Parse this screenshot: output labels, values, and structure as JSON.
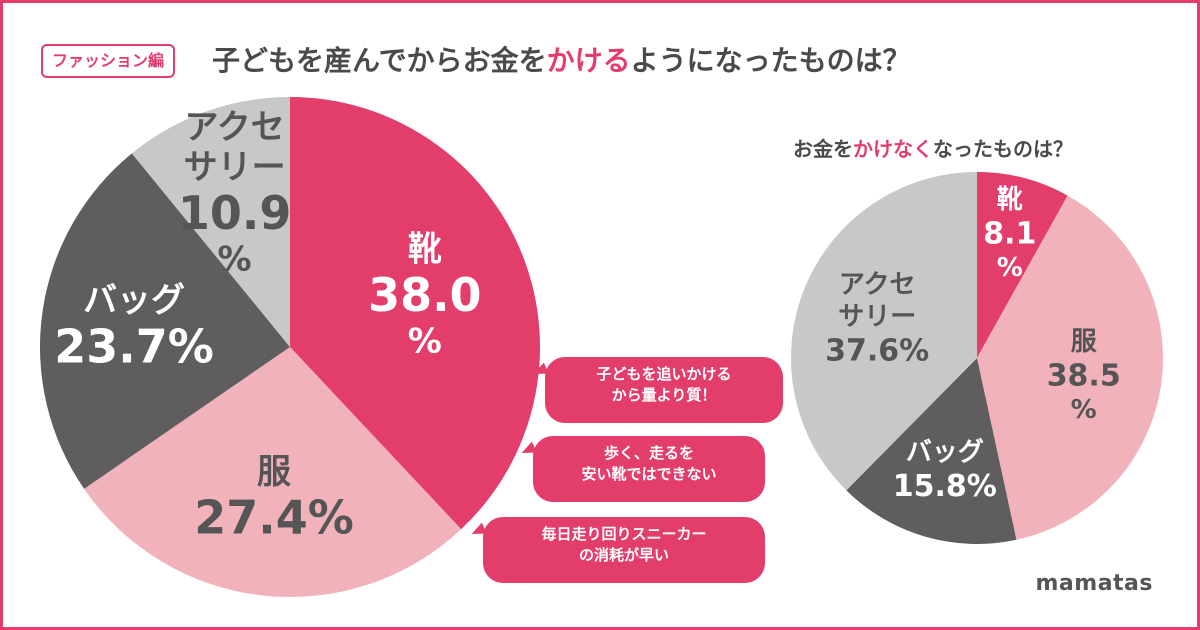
{
  "tag": "ファッション編",
  "title": {
    "before": "子どもを産んでから",
    "money": "お金を",
    "highlight": "かける",
    "after": "ようになったものは？"
  },
  "subtitle": {
    "before": "お金を",
    "highlight": "かけなく",
    "after": "なったものは？"
  },
  "brand": "mamatas",
  "colors": {
    "accent": "#e23d6b",
    "pink_light": "#f2b2bb",
    "dark_gray": "#5f5d5e",
    "light_gray": "#c8c8c8",
    "text": "#4a4a4a"
  },
  "bubbles": [
    {
      "line1": "子どもを追いかける",
      "line2": "から量より質！"
    },
    {
      "line1": "歩く、走るを",
      "line2": "安い靴ではできない"
    },
    {
      "line1": "毎日走り回りスニーカー",
      "line2": "の消耗が早い"
    }
  ],
  "chart_data": [
    {
      "type": "pie",
      "title": "子どもを産んでからお金をかけるようになったものは？",
      "unit": "%",
      "slices": [
        {
          "name": "靴",
          "value": 38.0,
          "value_text": "38.0",
          "unit": "%",
          "color": "#e23d6b",
          "text_color": "#ffffff"
        },
        {
          "name": "服",
          "value": 27.4,
          "value_text": "27.4",
          "unit": "%",
          "color": "#f2b2bb",
          "text_color": "#555555"
        },
        {
          "name": "バッグ",
          "value": 23.7,
          "value_text": "23.7",
          "unit": "%",
          "color": "#5f5d5e",
          "text_color": "#ffffff"
        },
        {
          "name": "アクセサリー",
          "name_line1": "アクセ",
          "name_line2": "サリー",
          "value": 10.9,
          "value_text": "10.9",
          "unit": "%",
          "color": "#c8c8c8",
          "text_color": "#555555"
        }
      ]
    },
    {
      "type": "pie",
      "title": "お金をかけなくなったものは？",
      "unit": "%",
      "slices": [
        {
          "name": "靴",
          "value": 8.1,
          "value_text": "8.1",
          "unit": "%",
          "color": "#e23d6b",
          "text_color": "#ffffff"
        },
        {
          "name": "服",
          "value": 38.5,
          "value_text": "38.5",
          "unit": "%",
          "color": "#f2b2bb",
          "text_color": "#555555"
        },
        {
          "name": "バッグ",
          "value": 15.8,
          "value_text": "15.8",
          "unit": "%",
          "color": "#5f5d5e",
          "text_color": "#ffffff"
        },
        {
          "name": "アクセサリー",
          "name_line1": "アクセ",
          "name_line2": "サリー",
          "value": 37.6,
          "value_text": "37.6",
          "unit": "%",
          "color": "#c8c8c8",
          "text_color": "#555555"
        }
      ]
    }
  ]
}
